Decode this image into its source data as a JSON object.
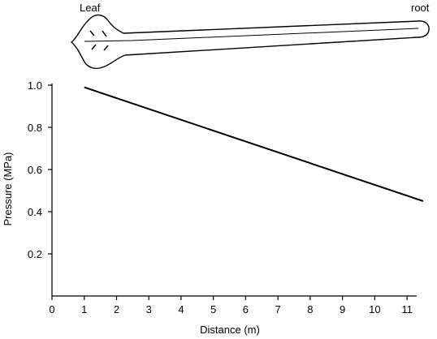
{
  "diagram": {
    "leaf_label": "Leaf",
    "root_label": "root"
  },
  "chart_data": {
    "type": "line",
    "xlabel": "Distance (m)",
    "ylabel": "Pressure (MPa)",
    "xlim": [
      0,
      11.3
    ],
    "ylim": [
      0,
      1.0
    ],
    "x_ticks": [
      0,
      1,
      2,
      3,
      4,
      5,
      6,
      7,
      8,
      9,
      10,
      11
    ],
    "y_ticks": [
      0.2,
      0.4,
      0.6,
      0.8,
      1.0
    ],
    "y_tick_labels": [
      "0.2",
      "0.4",
      "0.6",
      "0.8",
      "1.0"
    ],
    "grid": false,
    "series": [
      {
        "x": [
          1,
          11.5
        ],
        "y": [
          0.99,
          0.45
        ]
      }
    ]
  }
}
